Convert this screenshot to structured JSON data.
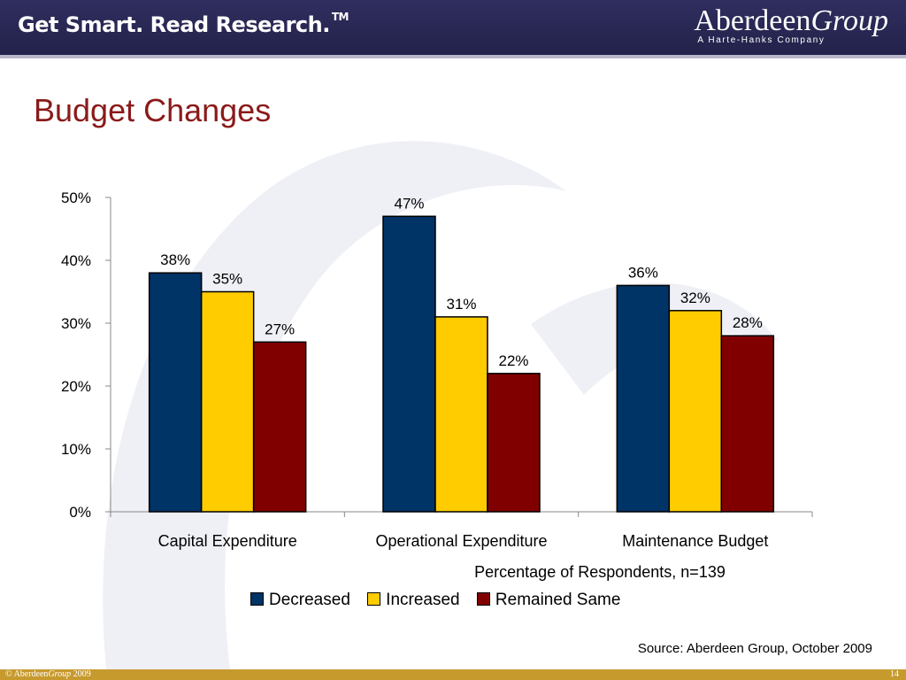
{
  "header": {
    "tagline": "Get Smart. Read Research.",
    "tagline_mark": "TM",
    "logo_word_1": "Aberdeen",
    "logo_word_2": "Group",
    "logo_sub": "A Harte-Hanks Company"
  },
  "slide": {
    "title": "Budget Changes",
    "source": "Source: Aberdeen Group, October 2009"
  },
  "chart_data": {
    "type": "bar",
    "categories": [
      "Capital Expenditure",
      "Operational Expenditure",
      "Maintenance Budget"
    ],
    "series": [
      {
        "name": "Decreased",
        "values": [
          38,
          47,
          36
        ],
        "color": "#003366"
      },
      {
        "name": "Increased",
        "values": [
          35,
          31,
          32
        ],
        "color": "#ffcc00"
      },
      {
        "name": "Remained Same",
        "values": [
          27,
          22,
          28
        ],
        "color": "#800000"
      }
    ],
    "data_labels": [
      [
        "38%",
        "47%",
        "36%"
      ],
      [
        "35%",
        "31%",
        "32%"
      ],
      [
        "27%",
        "22%",
        "28%"
      ]
    ],
    "title": "",
    "xlabel": "Percentage of Respondents, n=139",
    "ylabel": "",
    "ylim": [
      0,
      50
    ],
    "yticks": [
      0,
      10,
      20,
      30,
      40,
      50
    ],
    "ytick_labels": [
      "0%",
      "10%",
      "20%",
      "30%",
      "40%",
      "50%"
    ],
    "grid": false,
    "legend_position": "bottom"
  },
  "footer": {
    "copyright": "©",
    "brand_1": "Aberdeen",
    "brand_2": "Group",
    "year": "2009",
    "page_number": "14"
  }
}
